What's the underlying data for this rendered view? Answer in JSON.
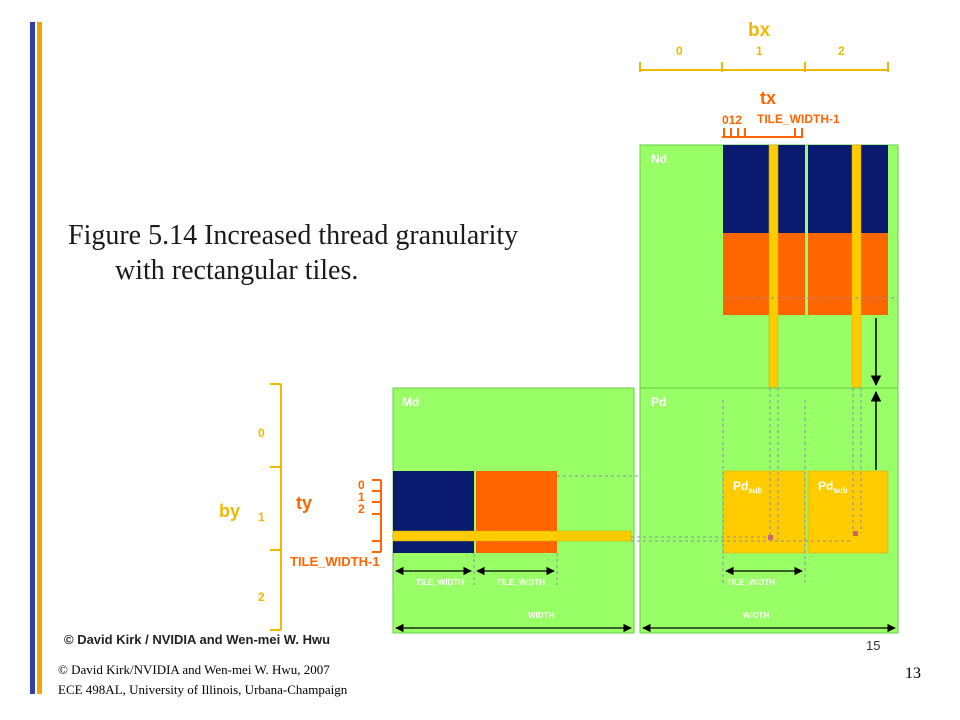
{
  "slide": {
    "figure_caption_line1": "Figure 5.14 Increased thread granularity",
    "figure_caption_line2": "with rectangular tiles.",
    "figure_credit": "© David Kirk / NVIDIA and Wen-mei W. Hwu",
    "footer_line1": "© David Kirk/NVIDIA and Wen-mei W. Hwu, 2007",
    "footer_line2": "ECE 498AL, University of Illinois, Urbana-Champaign",
    "page_number": "13",
    "figure_page_number": "15"
  },
  "diagram": {
    "bx_label": "bx",
    "bx_ticks": [
      "0",
      "1",
      "2"
    ],
    "tx_label": "tx",
    "tx_ticks": "012",
    "tx_tile_width": "TILE_WIDTH-1",
    "nd_label": "Nd",
    "md_label": "Md",
    "pd_label": "Pd",
    "pdsub_main": "Pd",
    "pdsub_sub": "sub",
    "by_label": "by",
    "by_ticks": [
      "0",
      "1",
      "2"
    ],
    "ty_label": "ty",
    "ty_ticks": [
      "0",
      "1",
      "2"
    ],
    "ty_tile_width": "TILE_WIDTH-1",
    "tile_width": "TILE_WIDTH",
    "width": "WIDTH",
    "colors": {
      "green": "#99ff66",
      "navy": "#0a1a6e",
      "orange": "#ff6600",
      "yellow": "#ffcc00",
      "label_orange": "#ff6600",
      "axis_yellow": "#f0b800",
      "bar_blue": "#3340a8",
      "bar_gold": "#f0a800"
    }
  }
}
